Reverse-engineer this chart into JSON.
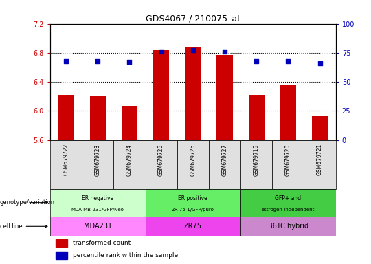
{
  "title": "GDS4067 / 210075_at",
  "samples": [
    "GSM679722",
    "GSM679723",
    "GSM679724",
    "GSM679725",
    "GSM679726",
    "GSM679727",
    "GSM679719",
    "GSM679720",
    "GSM679721"
  ],
  "bar_values": [
    6.22,
    6.2,
    6.07,
    6.85,
    6.88,
    6.77,
    6.22,
    6.36,
    5.93
  ],
  "percentile_values": [
    68,
    68,
    67,
    76,
    77,
    76,
    68,
    68,
    66
  ],
  "ylim_left": [
    5.6,
    7.2
  ],
  "ylim_right": [
    0,
    100
  ],
  "yticks_left": [
    5.6,
    6.0,
    6.4,
    6.8,
    7.2
  ],
  "yticks_right": [
    0,
    25,
    50,
    75,
    100
  ],
  "bar_color": "#cc0000",
  "dot_color": "#0000bb",
  "hline_values": [
    6.0,
    6.4,
    6.8
  ],
  "groups": [
    {
      "label": "ER negative\nMDA-MB-231/GFP/Neo",
      "cell_line": "MDA231",
      "start": 0,
      "end": 3,
      "geno_color": "#ccffcc",
      "cell_color": "#ff88ff"
    },
    {
      "label": "ER positive\nZR-75-1/GFP/puro",
      "cell_line": "ZR75",
      "start": 3,
      "end": 6,
      "geno_color": "#66ee66",
      "cell_color": "#ee44ee"
    },
    {
      "label": "GFP+ and\nestrogen-independent",
      "cell_line": "B6TC hybrid",
      "start": 6,
      "end": 9,
      "geno_color": "#44cc44",
      "cell_color": "#cc88cc"
    }
  ],
  "legend_items": [
    {
      "label": "transformed count",
      "color": "#cc0000"
    },
    {
      "label": "percentile rank within the sample",
      "color": "#0000bb"
    }
  ],
  "bg_color": "#ffffff",
  "tick_color_left": "#cc0000",
  "tick_color_right": "#0000bb",
  "sample_box_color": "#e0e0e0"
}
